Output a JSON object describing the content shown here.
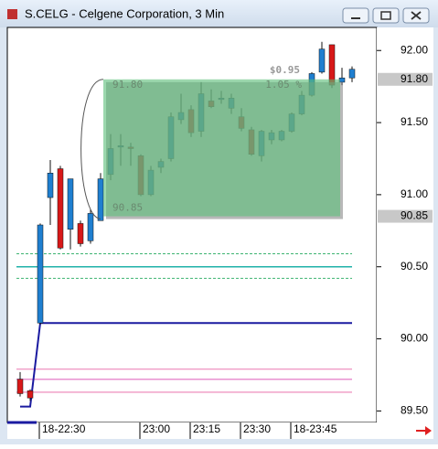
{
  "chart_data": {
    "type": "candlestick",
    "title": "S.CELG - Celgene Corporation, 3 Min",
    "categories": [
      null,
      null,
      "18-22:30",
      null,
      null,
      null,
      null,
      null,
      null,
      null,
      null,
      null,
      "23:00",
      null,
      null,
      null,
      null,
      "23:15",
      null,
      null,
      null,
      null,
      "23:30",
      null,
      null,
      null,
      null,
      "18-23:45",
      null,
      null,
      null,
      null,
      null,
      null
    ],
    "open": [
      89.72,
      89.64,
      90.11,
      90.98,
      91.18,
      90.76,
      90.8,
      90.68,
      90.82,
      91.14,
      91.33,
      91.33,
      91.27,
      91.0,
      91.19,
      91.25,
      91.52,
      91.59,
      91.44,
      91.65,
      91.66,
      91.6,
      91.54,
      91.45,
      91.27,
      91.38,
      91.38,
      91.44,
      91.56,
      91.69,
      91.85,
      92.04,
      91.78,
      91.81
    ],
    "high": [
      89.77,
      89.65,
      90.8,
      91.24,
      91.2,
      91.11,
      90.82,
      90.9,
      91.15,
      91.42,
      91.42,
      91.36,
      91.28,
      91.2,
      91.25,
      91.57,
      91.7,
      91.62,
      91.78,
      91.73,
      91.72,
      91.7,
      91.6,
      91.47,
      91.45,
      91.45,
      91.45,
      91.57,
      91.72,
      91.85,
      92.06,
      92.04,
      91.88,
      91.89
    ],
    "low": [
      89.6,
      89.57,
      90.1,
      90.79,
      90.62,
      90.62,
      90.64,
      90.66,
      90.82,
      91.1,
      91.2,
      91.2,
      90.99,
      90.99,
      91.15,
      91.23,
      91.49,
      91.4,
      91.4,
      91.6,
      91.63,
      91.56,
      91.44,
      91.27,
      91.23,
      91.35,
      91.37,
      91.43,
      91.55,
      91.68,
      91.84,
      91.74,
      91.76,
      91.78
    ],
    "close": [
      89.62,
      89.59,
      90.79,
      91.15,
      90.63,
      91.11,
      90.66,
      90.87,
      91.11,
      91.32,
      91.34,
      91.32,
      91.0,
      91.17,
      91.23,
      91.54,
      91.57,
      91.43,
      91.7,
      91.61,
      91.67,
      91.67,
      91.46,
      91.28,
      91.44,
      91.43,
      91.44,
      91.56,
      91.69,
      91.84,
      92.01,
      91.76,
      91.81,
      91.87
    ],
    "up_color": "#1f7fd0",
    "down_color": "#d81818",
    "ylim": [
      89.42,
      92.16
    ],
    "yticks": [
      {
        "value": 92.0,
        "label": "92.00"
      },
      {
        "value": 91.5,
        "label": "91.50"
      },
      {
        "value": 91.0,
        "label": "91.00"
      },
      {
        "value": 90.5,
        "label": "90.50"
      },
      {
        "value": 90.0,
        "label": "90.00"
      },
      {
        "value": 89.5,
        "label": "89.50"
      }
    ],
    "price_tags": [
      {
        "value": 91.8,
        "label": "91.80"
      },
      {
        "value": 90.85,
        "label": "90.85"
      }
    ],
    "measure": {
      "high": {
        "value": 91.8,
        "label": "91.80"
      },
      "low": {
        "value": 90.85,
        "label": "90.85"
      },
      "change": {
        "value": 0.95,
        "label": "$0.95"
      },
      "percent": {
        "value": 1.05,
        "label": "1.05 %"
      }
    },
    "levels": [
      {
        "value": 90.59,
        "color": "#3cb371",
        "dash": true
      },
      {
        "value": 90.5,
        "color": "#20b2aa",
        "dash": false
      },
      {
        "value": 90.42,
        "color": "#3cb371",
        "dash": true
      },
      {
        "value": 89.79,
        "color": "#f0a0c8",
        "dash": false
      },
      {
        "value": 89.72,
        "color": "#e890d0",
        "dash": false
      },
      {
        "value": 89.63,
        "color": "#f0a0c8",
        "dash": false
      }
    ],
    "stop_line": {
      "color": "#1a1aa0",
      "values": [
        89.53,
        89.53,
        90.11,
        90.11,
        90.11,
        90.11,
        90.11,
        90.11,
        90.11,
        90.11,
        90.11,
        90.11,
        90.11,
        90.11,
        90.11,
        90.11,
        90.11,
        90.11,
        90.11,
        90.11,
        90.11,
        90.11,
        90.11,
        90.11,
        90.11,
        90.11,
        90.11,
        90.11,
        90.11,
        90.11,
        90.11,
        90.11,
        90.11,
        90.11
      ]
    }
  }
}
